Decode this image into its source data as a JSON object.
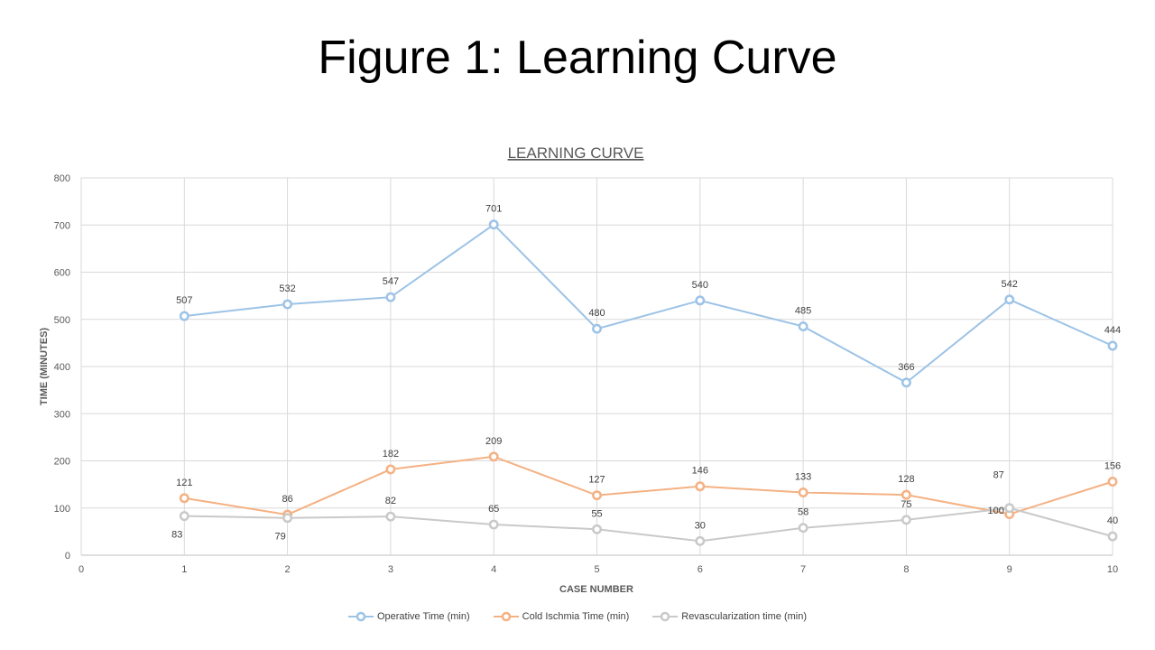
{
  "slide": {
    "title": "Figure 1:  Learning Curve"
  },
  "chart_data": {
    "type": "line",
    "title": "LEARNING CURVE",
    "xlabel": "CASE NUMBER",
    "ylabel": "TIME (MINUTES)",
    "xlim": [
      0,
      10
    ],
    "ylim": [
      0,
      800
    ],
    "x_ticks": [
      0,
      1,
      2,
      3,
      4,
      5,
      6,
      7,
      8,
      9,
      10
    ],
    "y_ticks": [
      0,
      100,
      200,
      300,
      400,
      500,
      600,
      700,
      800
    ],
    "grid": true,
    "legend_position": "bottom",
    "x": [
      1,
      2,
      3,
      4,
      5,
      6,
      7,
      8,
      9,
      10
    ],
    "series": [
      {
        "name": "Operative Time (min)",
        "color": "#9dc3e6",
        "values": [
          507,
          532,
          547,
          701,
          480,
          540,
          485,
          366,
          542,
          444
        ]
      },
      {
        "name": "Cold Ischmia Time (min)",
        "color": "#f4b183",
        "values": [
          121,
          86,
          182,
          209,
          127,
          146,
          133,
          128,
          87,
          156
        ]
      },
      {
        "name": "Revascularization time (min)",
        "color": "#c9c9c9",
        "values": [
          83,
          79,
          82,
          65,
          55,
          30,
          58,
          75,
          100,
          40
        ]
      }
    ]
  }
}
